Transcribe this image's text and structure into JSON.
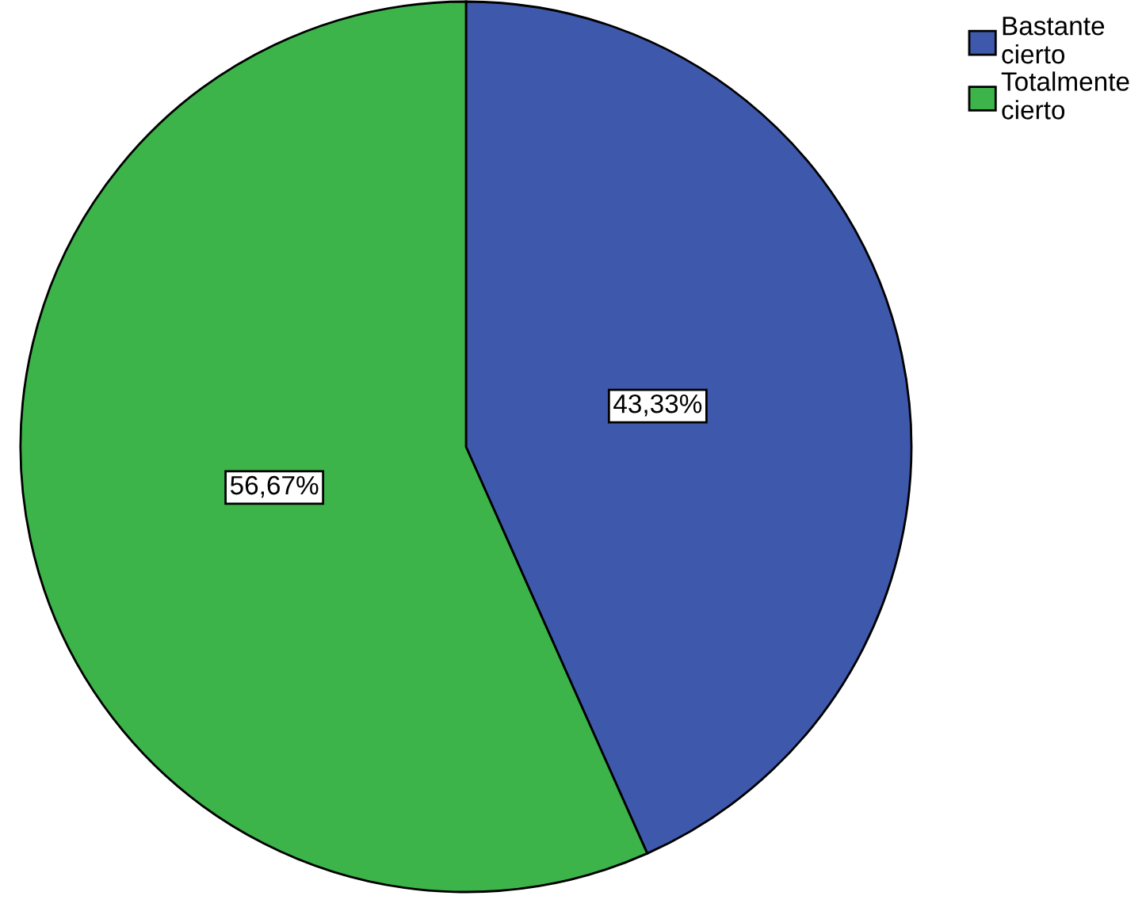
{
  "chart_data": {
    "type": "pie",
    "categories": [
      "Bastante cierto",
      "Totalmente cierto"
    ],
    "values": [
      43.33,
      56.67
    ],
    "colors": [
      "#3e58ac",
      "#3cb44a"
    ],
    "value_labels": [
      "43,33%",
      "56,67%"
    ],
    "legend": "top right"
  }
}
